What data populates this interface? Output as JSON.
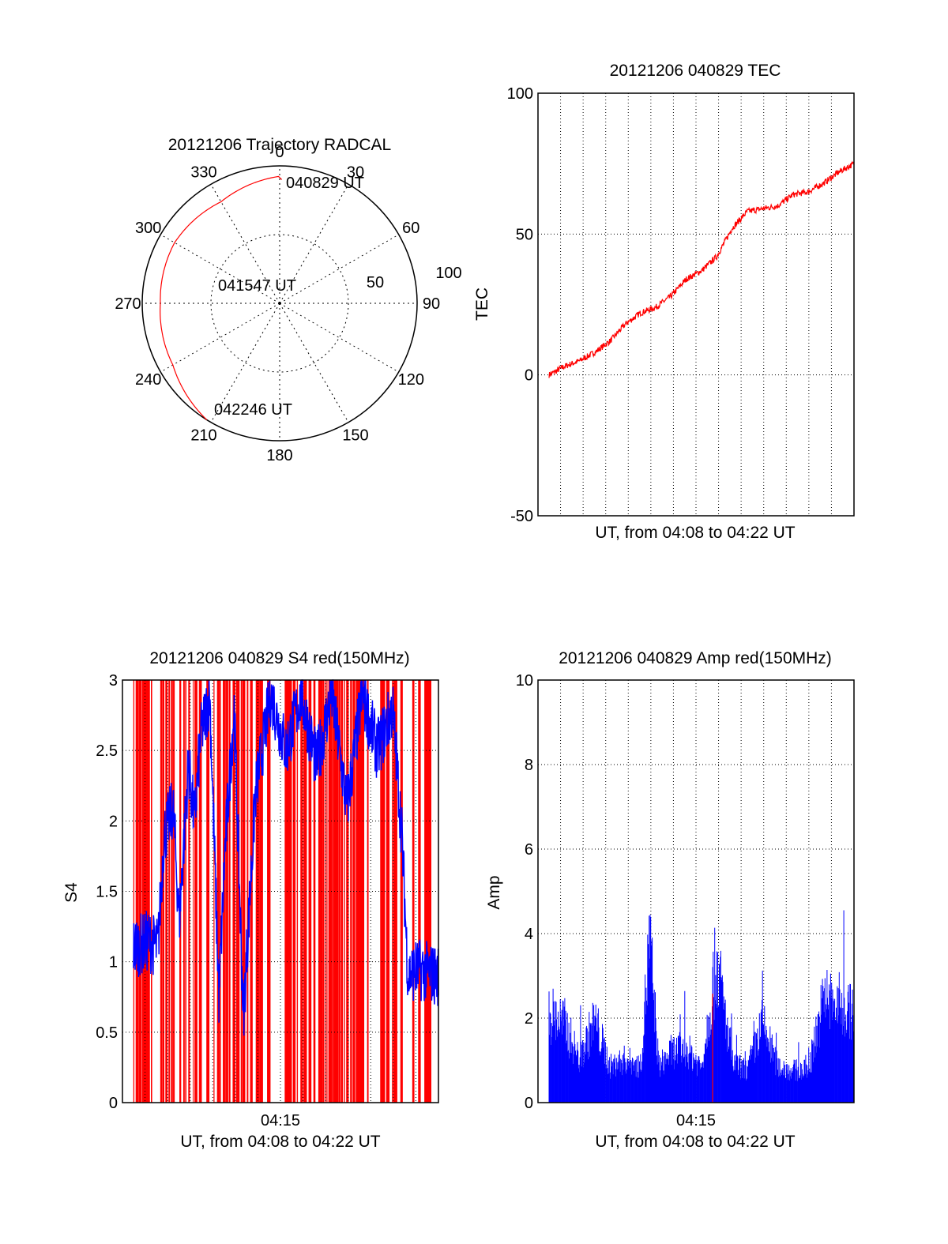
{
  "chart_data": [
    {
      "type": "polar",
      "title": "20121206 Trajectory RADCAL",
      "angle_labels": [
        "0",
        "30",
        "60",
        "90",
        "120",
        "150",
        "180",
        "210",
        "240",
        "270",
        "300",
        "330"
      ],
      "radial_labels": [
        "50",
        "100"
      ],
      "rlim": [
        0,
        100
      ],
      "grid": true,
      "annotations": [
        "040829 UT",
        "041547 UT",
        "042246 UT"
      ],
      "trajectory": {
        "color": "#ff0000",
        "points": [
          {
            "az": 1,
            "r": 95
          },
          {
            "az": 330,
            "r": 90
          },
          {
            "az": 300,
            "r": 92
          },
          {
            "az": 270,
            "r": 91
          },
          {
            "az": 240,
            "r": 93
          },
          {
            "az": 212,
            "r": 100
          }
        ]
      }
    },
    {
      "type": "line",
      "title": "20121206 040829 TEC",
      "xlabel": "UT, from 04:08 to 04:22 UT",
      "ylabel": "TEC",
      "ylim": [
        -50,
        100
      ],
      "yticks": [
        "-50",
        "0",
        "50",
        "100"
      ],
      "grid": true,
      "series": [
        {
          "color": "#ff0000",
          "t": [
            0,
            0.05,
            0.1,
            0.15,
            0.2,
            0.25,
            0.3,
            0.35,
            0.4,
            0.45,
            0.5,
            0.55,
            0.6,
            0.65,
            0.7,
            0.75,
            0.8,
            0.85,
            0.9,
            0.95,
            1.0
          ],
          "values": [
            0,
            3,
            5,
            8,
            12,
            18,
            22,
            24,
            28,
            34,
            37,
            42,
            52,
            58,
            59,
            60,
            64,
            65,
            68,
            72,
            75
          ]
        }
      ]
    },
    {
      "type": "line",
      "title": "20121206 040829 S4 red(150MHz)",
      "xlabel": "UT, from 04:08 to 04:22 UT",
      "ylabel": "S4",
      "ylim": [
        0,
        3
      ],
      "yticks": [
        "0",
        "0.5",
        "1",
        "1.5",
        "2",
        "2.5",
        "3"
      ],
      "xticks": [
        "04:15"
      ],
      "grid": true,
      "series": [
        {
          "color": "#0000ff",
          "t": [
            0,
            0.05,
            0.08,
            0.1,
            0.13,
            0.15,
            0.18,
            0.2,
            0.22,
            0.25,
            0.28,
            0.3,
            0.33,
            0.36,
            0.4,
            0.45,
            0.5,
            0.55,
            0.6,
            0.65,
            0.7,
            0.75,
            0.8,
            0.85,
            0.88,
            0.9,
            0.93,
            1.0
          ],
          "values": [
            1.1,
            1.15,
            1.1,
            1.9,
            2.1,
            1.3,
            2.4,
            2.0,
            2.6,
            2.9,
            0.75,
            1.8,
            2.8,
            0.6,
            2.2,
            2.9,
            2.5,
            2.9,
            2.4,
            2.9,
            2.1,
            2.9,
            2.5,
            2.8,
            1.9,
            0.9,
            0.95,
            0.9
          ]
        }
      ],
      "red_fill": true
    },
    {
      "type": "bar",
      "title": "20121206 040829 Amp red(150MHz)",
      "xlabel": "UT, from 04:08 to 04:22 UT",
      "ylabel": "Amp",
      "ylim": [
        0,
        10
      ],
      "yticks": [
        "0",
        "2",
        "4",
        "6",
        "8",
        "10"
      ],
      "xticks": [
        "04:15"
      ],
      "grid": true,
      "series": [
        {
          "color": "#0000ff",
          "t": [
            0,
            0.05,
            0.1,
            0.15,
            0.2,
            0.25,
            0.3,
            0.33,
            0.36,
            0.4,
            0.45,
            0.5,
            0.55,
            0.6,
            0.65,
            0.7,
            0.75,
            0.8,
            0.85,
            0.9,
            0.95,
            1.0
          ],
          "values": [
            2.5,
            2.2,
            1.2,
            2.3,
            1.0,
            1.2,
            1.0,
            4.5,
            1.0,
            1.4,
            1.5,
            1.0,
            4.0,
            1.1,
            0.9,
            2.2,
            1.0,
            0.9,
            0.9,
            2.8,
            2.7,
            2.5
          ]
        }
      ]
    }
  ]
}
